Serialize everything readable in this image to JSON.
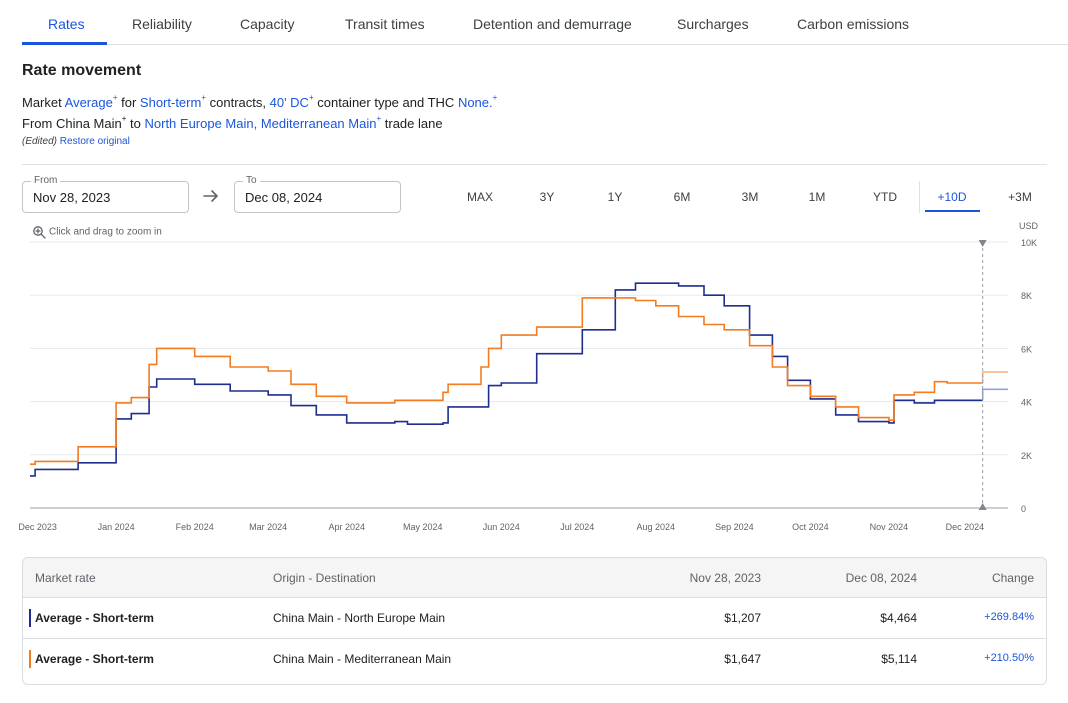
{
  "tabs": [
    {
      "label": "Rates"
    },
    {
      "label": "Reliability"
    },
    {
      "label": "Capacity"
    },
    {
      "label": "Transit times"
    },
    {
      "label": "Detention and demurrage"
    },
    {
      "label": "Surcharges"
    },
    {
      "label": "Carbon emissions"
    }
  ],
  "section": {
    "title": "Rate movement"
  },
  "filters": {
    "line1": {
      "market_label": "Market",
      "market_value": "Average",
      "for_label": "for",
      "contract_value": "Short-term",
      "contracts_label": "contracts,",
      "container_value": "40' DC",
      "container_label": "container type and THC",
      "thc_value": "None."
    },
    "line2": {
      "from_label": "From",
      "origin_value": "China Main",
      "to_label": "to",
      "destination_value": "North Europe Main, Mediterranean Main",
      "lane_label": "trade lane"
    },
    "plus": "+",
    "edited_label": "(Edited)",
    "restore_label": "Restore original"
  },
  "date_range": {
    "from_label": "From",
    "from_value": "Nov 28, 2023",
    "to_label": "To",
    "to_value": "Dec 08, 2024"
  },
  "range_buttons": [
    "MAX",
    "3Y",
    "1Y",
    "6M",
    "3M",
    "1M",
    "YTD",
    "+10D",
    "+3M"
  ],
  "active_range": "+10D",
  "chart_hint": "Click and drag to zoom in",
  "chart_data": {
    "type": "line",
    "ylabel": "USD",
    "ylim": [
      0,
      10000
    ],
    "yticks": [
      0,
      2000,
      4000,
      6000,
      8000,
      10000
    ],
    "ytick_labels": [
      "0",
      "2K",
      "4K",
      "6K",
      "8K",
      "10K"
    ],
    "xlim": [
      "2023-11-28",
      "2024-12-18"
    ],
    "xticks": [
      "2023-12-01",
      "2024-01-01",
      "2024-02-01",
      "2024-03-01",
      "2024-04-01",
      "2024-05-01",
      "2024-06-01",
      "2024-07-01",
      "2024-08-01",
      "2024-09-01",
      "2024-10-01",
      "2024-11-01",
      "2024-12-01"
    ],
    "xtick_labels": [
      "Dec 2023",
      "Jan 2024",
      "Feb 2024",
      "Mar 2024",
      "Apr 2024",
      "May 2024",
      "Jun 2024",
      "Jul 2024",
      "Aug 2024",
      "Sep 2024",
      "Oct 2024",
      "Nov 2024",
      "Dec 2024"
    ],
    "marker_date": "2024-12-08",
    "grid": true,
    "series": [
      {
        "color": "#1f2d8f",
        "forecast_color": "#8fa0e6",
        "step": true,
        "points": [
          [
            "2023-11-28",
            1207
          ],
          [
            "2023-11-30",
            1450
          ],
          [
            "2023-12-17",
            1700
          ],
          [
            "2024-01-01",
            3350
          ],
          [
            "2024-01-07",
            3550
          ],
          [
            "2024-01-14",
            4550
          ],
          [
            "2024-01-17",
            4850
          ],
          [
            "2024-02-01",
            4650
          ],
          [
            "2024-02-15",
            4400
          ],
          [
            "2024-03-01",
            4250
          ],
          [
            "2024-03-10",
            3850
          ],
          [
            "2024-03-20",
            3500
          ],
          [
            "2024-04-01",
            3200
          ],
          [
            "2024-04-20",
            3250
          ],
          [
            "2024-04-25",
            3150
          ],
          [
            "2024-05-09",
            3200
          ],
          [
            "2024-05-11",
            3800
          ],
          [
            "2024-05-24",
            3800
          ],
          [
            "2024-05-27",
            4600
          ],
          [
            "2024-06-01",
            4700
          ],
          [
            "2024-06-15",
            5800
          ],
          [
            "2024-07-03",
            6700
          ],
          [
            "2024-07-16",
            8200
          ],
          [
            "2024-07-24",
            8450
          ],
          [
            "2024-08-01",
            8450
          ],
          [
            "2024-08-10",
            8350
          ],
          [
            "2024-08-20",
            8000
          ],
          [
            "2024-08-28",
            7600
          ],
          [
            "2024-09-07",
            6500
          ],
          [
            "2024-09-16",
            5700
          ],
          [
            "2024-09-22",
            4800
          ],
          [
            "2024-10-01",
            4100
          ],
          [
            "2024-10-11",
            3500
          ],
          [
            "2024-10-20",
            3250
          ],
          [
            "2024-11-01",
            3200
          ],
          [
            "2024-11-03",
            4050
          ],
          [
            "2024-11-11",
            3950
          ],
          [
            "2024-11-19",
            4050
          ],
          [
            "2024-12-08",
            4050
          ]
        ],
        "forecast": [
          [
            "2024-12-08",
            4464
          ],
          [
            "2024-12-10",
            4464
          ],
          [
            "2024-12-18",
            4464
          ]
        ]
      },
      {
        "color": "#f47b20",
        "forecast_color": "#f9b27d",
        "step": true,
        "points": [
          [
            "2023-11-28",
            1647
          ],
          [
            "2023-11-30",
            1750
          ],
          [
            "2023-12-17",
            2300
          ],
          [
            "2024-01-01",
            3950
          ],
          [
            "2024-01-07",
            4150
          ],
          [
            "2024-01-14",
            5400
          ],
          [
            "2024-01-17",
            6000
          ],
          [
            "2024-02-01",
            5700
          ],
          [
            "2024-02-15",
            5300
          ],
          [
            "2024-03-01",
            5150
          ],
          [
            "2024-03-10",
            4650
          ],
          [
            "2024-03-20",
            4200
          ],
          [
            "2024-04-01",
            3950
          ],
          [
            "2024-04-20",
            4050
          ],
          [
            "2024-05-01",
            4050
          ],
          [
            "2024-05-09",
            4350
          ],
          [
            "2024-05-11",
            4650
          ],
          [
            "2024-05-24",
            5300
          ],
          [
            "2024-05-27",
            6000
          ],
          [
            "2024-06-01",
            6500
          ],
          [
            "2024-06-15",
            6800
          ],
          [
            "2024-07-03",
            7900
          ],
          [
            "2024-07-24",
            7800
          ],
          [
            "2024-08-01",
            7600
          ],
          [
            "2024-08-10",
            7200
          ],
          [
            "2024-08-20",
            6900
          ],
          [
            "2024-08-28",
            6700
          ],
          [
            "2024-09-07",
            6100
          ],
          [
            "2024-09-16",
            5300
          ],
          [
            "2024-09-22",
            4600
          ],
          [
            "2024-10-01",
            4200
          ],
          [
            "2024-10-11",
            3800
          ],
          [
            "2024-10-20",
            3400
          ],
          [
            "2024-11-01",
            3300
          ],
          [
            "2024-11-03",
            4250
          ],
          [
            "2024-11-11",
            4350
          ],
          [
            "2024-11-19",
            4750
          ],
          [
            "2024-11-24",
            4700
          ],
          [
            "2024-12-08",
            4700
          ]
        ],
        "forecast": [
          [
            "2024-12-08",
            5114
          ],
          [
            "2024-12-10",
            5114
          ],
          [
            "2024-12-18",
            5114
          ]
        ]
      }
    ]
  },
  "table": {
    "headers": [
      "Market rate",
      "Origin - Destination",
      "Nov 28, 2023",
      "Dec 08, 2024",
      "Change"
    ],
    "rows": [
      {
        "color": "#1f2d8f",
        "market": "Average - Short-term",
        "route": "China Main - North Europe Main",
        "start": "$1,207",
        "end": "$4,464",
        "change": "+269.84%"
      },
      {
        "color": "#f47b20",
        "market": "Average - Short-term",
        "route": "China Main - Mediterranean Main",
        "start": "$1,647",
        "end": "$5,114",
        "change": "+210.50%"
      }
    ]
  }
}
